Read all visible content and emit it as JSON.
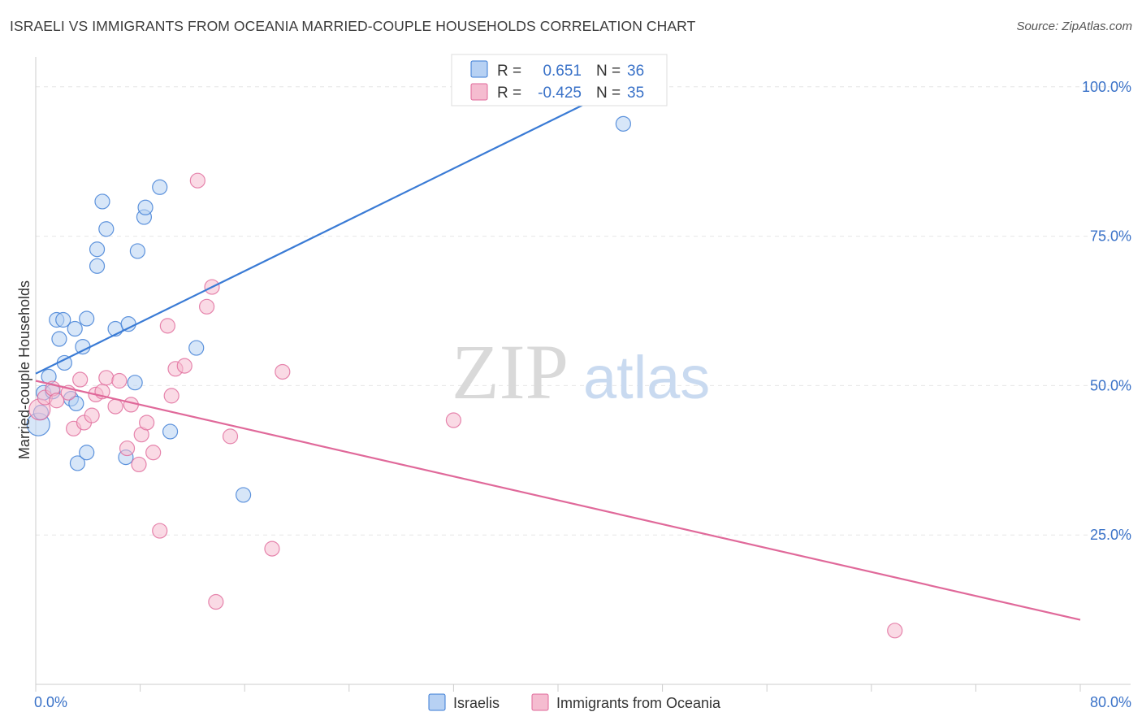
{
  "header": {
    "title": "ISRAELI VS IMMIGRANTS FROM OCEANIA MARRIED-COUPLE HOUSEHOLDS CORRELATION CHART",
    "source": "Source: ZipAtlas.com"
  },
  "watermark": {
    "zip": "ZIP",
    "atlas": "atlas"
  },
  "colors": {
    "blue": "#3a7bd5",
    "blue_fill": "#b7d1f3",
    "pink": "#e0699a",
    "pink_fill": "#f5bcd0",
    "label_blue": "#3a72c8"
  },
  "legend": {
    "r_label": "R =",
    "n_label": "N =",
    "rows": [
      {
        "r": "0.651",
        "n": "36"
      },
      {
        "r": "-0.425",
        "n": "35"
      }
    ]
  },
  "chart_data": {
    "type": "scatter",
    "title": "ISRAELI VS IMMIGRANTS FROM OCEANIA MARRIED-COUPLE HOUSEHOLDS CORRELATION CHART",
    "xlabel": "",
    "ylabel": "Married-couple Households",
    "xlim": [
      0,
      80
    ],
    "ylim": [
      0,
      105
    ],
    "x_tick_labels": [
      "0.0%",
      "80.0%"
    ],
    "y_ticks": [
      25,
      50,
      75,
      100
    ],
    "y_tick_labels": [
      "25.0%",
      "50.0%",
      "75.0%",
      "100.0%"
    ],
    "grid": true,
    "legend_position": "top-center",
    "series": [
      {
        "name": "Israelis",
        "color": "#3a7bd5",
        "r": 0.651,
        "n": 36,
        "trend": [
          [
            0,
            52.0
          ],
          [
            45.5,
            100.8
          ]
        ],
        "points": [
          [
            0.2,
            43.5,
            14
          ],
          [
            0.4,
            45.5,
            9
          ],
          [
            0.6,
            48.8,
            9
          ],
          [
            1.0,
            51.5,
            9
          ],
          [
            1.3,
            49.0,
            9
          ],
          [
            1.6,
            61.0,
            9
          ],
          [
            1.8,
            57.8,
            9
          ],
          [
            2.1,
            61.0,
            9
          ],
          [
            2.2,
            53.8,
            9
          ],
          [
            2.7,
            47.8,
            9
          ],
          [
            3.0,
            59.5,
            9
          ],
          [
            3.1,
            47.0,
            9
          ],
          [
            3.2,
            37.0,
            9
          ],
          [
            3.6,
            56.5,
            9
          ],
          [
            3.9,
            61.2,
            9
          ],
          [
            3.9,
            38.8,
            9
          ],
          [
            4.7,
            70.0,
            9
          ],
          [
            4.7,
            72.8,
            9
          ],
          [
            5.1,
            80.8,
            9
          ],
          [
            5.4,
            76.2,
            9
          ],
          [
            6.1,
            59.5,
            9
          ],
          [
            6.9,
            38.0,
            9
          ],
          [
            7.1,
            60.3,
            9
          ],
          [
            7.6,
            50.5,
            9
          ],
          [
            7.8,
            72.5,
            9
          ],
          [
            8.3,
            78.2,
            9
          ],
          [
            8.4,
            79.8,
            9
          ],
          [
            9.5,
            83.2,
            9
          ],
          [
            10.3,
            42.3,
            9
          ],
          [
            12.3,
            56.3,
            9
          ],
          [
            15.9,
            31.7,
            9
          ],
          [
            34.2,
            100.2,
            9
          ],
          [
            45.0,
            93.8,
            9
          ],
          [
            45.4,
            100.5,
            9
          ]
        ]
      },
      {
        "name": "Immigrants from Oceania",
        "color": "#e0699a",
        "r": -0.425,
        "n": 35,
        "trend": [
          [
            0,
            50.8
          ],
          [
            80,
            10.8
          ]
        ],
        "points": [
          [
            0.3,
            46.0,
            13
          ],
          [
            0.7,
            48.0,
            9
          ],
          [
            1.3,
            49.5,
            9
          ],
          [
            1.6,
            47.5,
            9
          ],
          [
            2.5,
            48.8,
            9
          ],
          [
            2.9,
            42.8,
            9
          ],
          [
            3.4,
            51.0,
            9
          ],
          [
            3.7,
            43.8,
            9
          ],
          [
            4.3,
            45.0,
            9
          ],
          [
            4.6,
            48.5,
            9
          ],
          [
            5.1,
            49.0,
            9
          ],
          [
            5.4,
            51.3,
            9
          ],
          [
            6.1,
            46.5,
            9
          ],
          [
            6.4,
            50.8,
            9
          ],
          [
            7.0,
            39.5,
            9
          ],
          [
            7.3,
            46.8,
            9
          ],
          [
            7.9,
            36.8,
            9
          ],
          [
            8.1,
            41.8,
            9
          ],
          [
            8.5,
            43.8,
            9
          ],
          [
            9.0,
            38.8,
            9
          ],
          [
            9.5,
            25.7,
            9
          ],
          [
            10.1,
            60.0,
            9
          ],
          [
            10.4,
            48.3,
            9
          ],
          [
            10.7,
            52.8,
            9
          ],
          [
            11.4,
            53.3,
            9
          ],
          [
            12.4,
            84.3,
            9
          ],
          [
            13.1,
            63.2,
            9
          ],
          [
            13.5,
            66.5,
            9
          ],
          [
            13.8,
            13.8,
            9
          ],
          [
            14.9,
            41.5,
            9
          ],
          [
            18.1,
            22.7,
            9
          ],
          [
            18.9,
            52.3,
            9
          ],
          [
            32.0,
            44.2,
            9
          ],
          [
            65.8,
            9.0,
            9
          ]
        ]
      }
    ]
  },
  "bottom_legend": {
    "items": [
      {
        "label": "Israelis"
      },
      {
        "label": "Immigrants from Oceania"
      }
    ]
  }
}
